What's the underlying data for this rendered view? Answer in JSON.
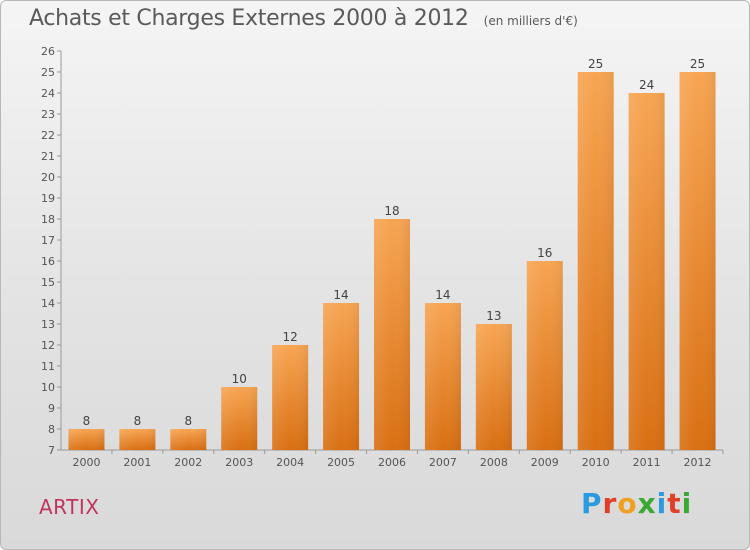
{
  "title": "Achats et Charges Externes 2000 à 2012",
  "subtitle": "(en milliers d'€)",
  "town": "ARTIX",
  "logo": {
    "letters": [
      "P",
      "r",
      "o",
      "x",
      "i",
      "t",
      "i"
    ],
    "colors": [
      "#2a9be0",
      "#e0402a",
      "#f0a020",
      "#3aa832",
      "#2a9be0",
      "#e0402a",
      "#3aa832"
    ]
  },
  "colors": {
    "bar": "#ef8a30",
    "bar_light": "#f7a553",
    "bar_dark": "#d96f12",
    "town": "#c0345e"
  },
  "chart_data": {
    "type": "bar",
    "title": "Achats et Charges Externes 2000 à 2012",
    "subtitle": "(en milliers d'€)",
    "categories": [
      "2000",
      "2001",
      "2002",
      "2003",
      "2004",
      "2005",
      "2006",
      "2007",
      "2008",
      "2009",
      "2010",
      "2011",
      "2012"
    ],
    "values": [
      8,
      8,
      8,
      10,
      12,
      14,
      18,
      14,
      13,
      16,
      25,
      24,
      25
    ],
    "ylim": [
      7,
      26
    ],
    "yticks": [
      7,
      8,
      9,
      10,
      11,
      12,
      13,
      14,
      15,
      16,
      17,
      18,
      19,
      20,
      21,
      22,
      23,
      24,
      25,
      26
    ],
    "grid": false,
    "data_labels": true
  }
}
